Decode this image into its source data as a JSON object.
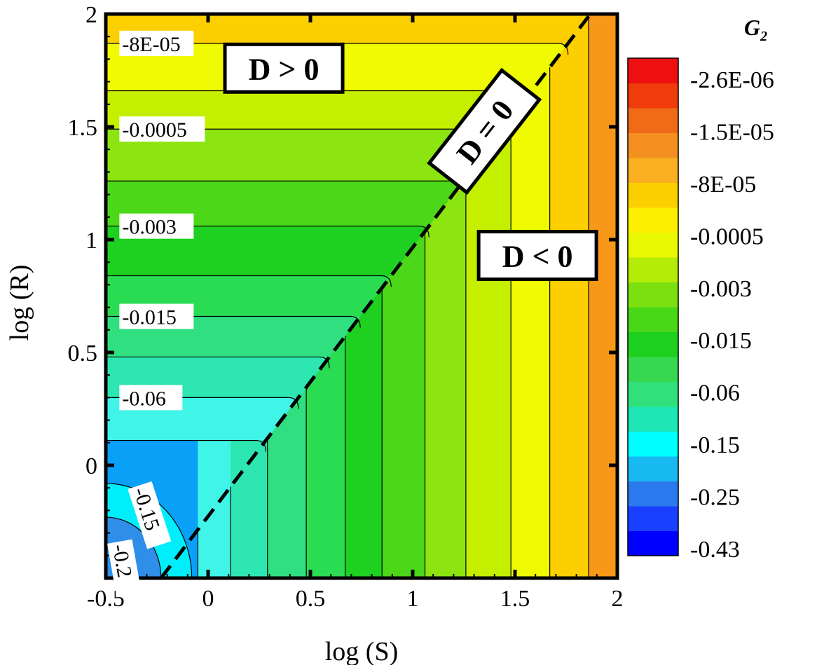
{
  "chart_data": {
    "type": "heatmap",
    "xlabel": "log (S)",
    "ylabel": "log (R)",
    "xlim": [
      -0.5,
      2
    ],
    "ylim": [
      -0.5,
      2
    ],
    "x_ticks": [
      -0.5,
      0,
      0.5,
      1,
      1.5,
      2
    ],
    "y_ticks": [
      -0.5,
      0,
      0.5,
      1,
      1.5,
      2
    ],
    "x_tick_labels": [
      "-0.5",
      "0",
      "0.5",
      "1",
      "1.5",
      "2"
    ],
    "y_tick_labels": [
      "",
      "0",
      "0.5",
      "1",
      "1.5",
      "2"
    ],
    "colorbar": {
      "title": "G",
      "title_subscript": "2",
      "labels": [
        "-2.6E-06",
        "-1.5E-05",
        "-8E-05",
        "-0.0005",
        "-0.003",
        "-0.015",
        "-0.06",
        "-0.15",
        "-0.25",
        "-0.43"
      ],
      "levels_colors": [
        "#0000ff",
        "#1a40ff",
        "#2a7aee",
        "#18b8f0",
        "#00ffff",
        "#1ee6b4",
        "#30e07a",
        "#36d850",
        "#1ed020",
        "#48d818",
        "#7ce010",
        "#b4ec08",
        "#e8f800",
        "#fcf000",
        "#fcd000",
        "#fab020",
        "#f49020",
        "#f06a18",
        "#f03c0c",
        "#ee1010"
      ]
    },
    "vertical_contours": {
      "x": [
        -0.05,
        0.11,
        0.29,
        0.48,
        0.67,
        0.85,
        1.06,
        1.26,
        1.48,
        1.67,
        1.86
      ],
      "fill_colors": [
        "#0aa0f8",
        "#40f4e8",
        "#2ee6b2",
        "#30e080",
        "#2adc52",
        "#1ed020",
        "#4cd818",
        "#8ce410",
        "#c4f000",
        "#f0fa00",
        "#fcd000",
        "#f89818"
      ]
    },
    "horizontal_contours": {
      "y": [
        1.87,
        1.66,
        1.49,
        1.26,
        1.06,
        0.84,
        0.66,
        0.48,
        0.3,
        0.11
      ],
      "fill_colors": [
        "#fcd000",
        "#f0fa00",
        "#c4f000",
        "#8ce410",
        "#4cd818",
        "#1ed020",
        "#2adc52",
        "#30e080",
        "#2ee6b2",
        "#40f4e8",
        "#0aa0f8"
      ]
    },
    "corner_contours": [
      {
        "level": "-0.2",
        "radius": 0.27,
        "fill": "#2e8ee8"
      },
      {
        "level": "-0.15",
        "radius": 0.42,
        "fill": "#00eefa"
      }
    ],
    "boundary_line": {
      "label": "D = 0",
      "points": [
        [
          -0.23,
          -0.5
        ],
        [
          1.86,
          1.99
        ]
      ]
    },
    "contour_labels": [
      {
        "text": "-8E-05",
        "x": -0.42,
        "y": 1.87
      },
      {
        "text": "-0.0005",
        "x": -0.42,
        "y": 1.49
      },
      {
        "text": "-0.003",
        "x": -0.42,
        "y": 1.06
      },
      {
        "text": "-0.015",
        "x": -0.42,
        "y": 0.66
      },
      {
        "text": "-0.06",
        "x": -0.42,
        "y": 0.3
      },
      {
        "text": "-0.15",
        "x": -0.33,
        "y": -0.1,
        "angle": 72
      },
      {
        "text": "-0.2",
        "x": -0.43,
        "y": -0.35,
        "angle": 80
      }
    ],
    "region_labels": [
      {
        "text": "D > 0",
        "x": 0.37,
        "y": 1.76
      },
      {
        "text": "D < 0",
        "x": 1.61,
        "y": 0.93
      },
      {
        "text": "D = 0",
        "x": 1.35,
        "y": 1.48,
        "angle": -52
      }
    ]
  }
}
